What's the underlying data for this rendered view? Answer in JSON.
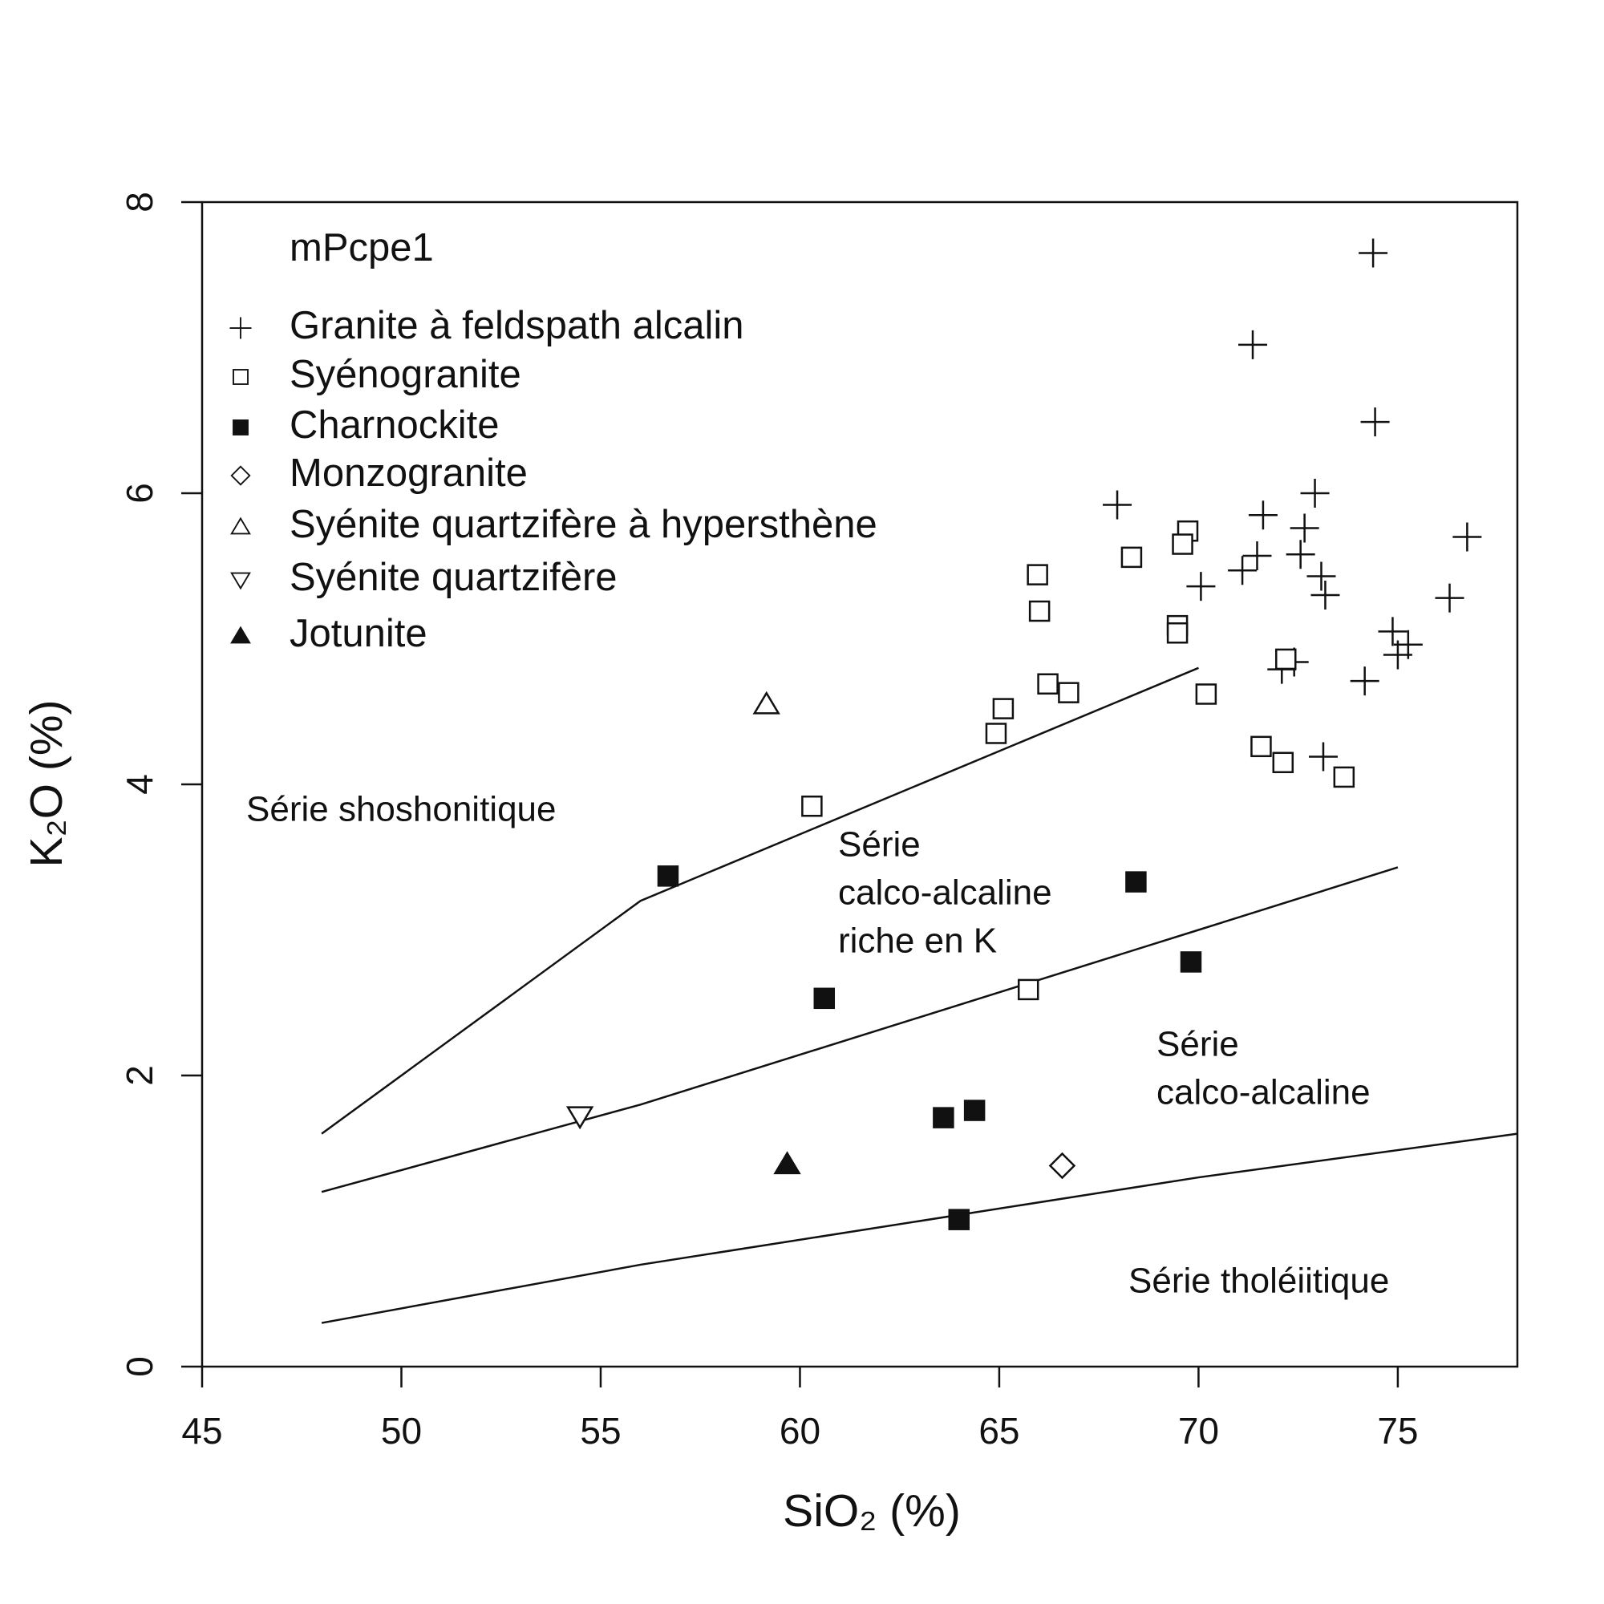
{
  "chart_data": {
    "type": "scatter",
    "legend_title": "mPcpe1",
    "x_label": "SiO₂ (%)",
    "y_label": "K₂O (%)",
    "xlim": [
      45,
      78
    ],
    "ylim": [
      0,
      8
    ],
    "xticks": [
      45,
      50,
      55,
      60,
      65,
      70,
      75
    ],
    "yticks": [
      0,
      2,
      4,
      6,
      8
    ],
    "legend_position": "top-left",
    "series": [
      {
        "name": "Granite à feldspath alcalin",
        "marker": "plus",
        "color": "#111111",
        "x": [
          74.38,
          71.36,
          74.43,
          72.92,
          67.96,
          71.62,
          72.66,
          76.74,
          71.47,
          72.56,
          71.1,
          73.08,
          70.06,
          73.18,
          76.3,
          74.87,
          75.26,
          75.0,
          72.09,
          72.4,
          74.17,
          73.13
        ],
        "values": [
          7.65,
          7.02,
          6.49,
          6.0,
          5.92,
          5.85,
          5.76,
          5.7,
          5.57,
          5.58,
          5.47,
          5.43,
          5.36,
          5.3,
          5.28,
          5.05,
          4.96,
          4.89,
          4.79,
          4.84,
          4.71,
          4.19
        ]
      },
      {
        "name": "Syénogranite",
        "marker": "open-square",
        "color": "#111111",
        "x": [
          69.73,
          69.6,
          68.32,
          65.96,
          66.01,
          69.47,
          69.47,
          72.19,
          66.22,
          66.74,
          70.19,
          65.1,
          64.92,
          71.57,
          72.12,
          73.65,
          60.3,
          65.73
        ],
        "values": [
          5.74,
          5.65,
          5.56,
          5.44,
          5.19,
          5.09,
          5.04,
          4.86,
          4.69,
          4.63,
          4.62,
          4.52,
          4.35,
          4.26,
          4.15,
          4.05,
          3.85,
          2.59
        ]
      },
      {
        "name": "Charnockite",
        "marker": "filled-square",
        "color": "#111111",
        "x": [
          56.69,
          68.43,
          69.81,
          60.61,
          63.6,
          64.38,
          63.99
        ],
        "values": [
          3.37,
          3.33,
          2.78,
          2.53,
          1.71,
          1.76,
          1.01
        ]
      },
      {
        "name": "Monzogranite",
        "marker": "open-diamond",
        "color": "#111111",
        "x": [
          66.58
        ],
        "values": [
          1.38
        ]
      },
      {
        "name": "Syénite quartzifère à hypersthène",
        "marker": "open-triangle-up",
        "color": "#111111",
        "x": [
          59.16
        ],
        "values": [
          4.55
        ]
      },
      {
        "name": "Syénite quartzifère",
        "marker": "open-triangle-down",
        "color": "#111111",
        "x": [
          54.48
        ],
        "values": [
          1.72
        ]
      },
      {
        "name": "Jotunite",
        "marker": "filled-triangle-up",
        "color": "#111111",
        "x": [
          59.68
        ],
        "values": [
          1.39
        ]
      }
    ],
    "boundaries": [
      {
        "x": [
          48,
          56,
          70
        ],
        "values": [
          1.6,
          3.2,
          4.8
        ]
      },
      {
        "x": [
          48,
          52,
          56,
          70,
          75
        ],
        "values": [
          1.2,
          1.5,
          1.8,
          3.0,
          3.43
        ]
      },
      {
        "x": [
          48,
          52,
          56,
          70,
          78
        ],
        "values": [
          0.3,
          0.5,
          0.7,
          1.3,
          1.6
        ]
      }
    ],
    "annotations": [
      {
        "lines": [
          "Série shoshonitique"
        ]
      },
      {
        "lines": [
          "Série",
          "calco-alcaline",
          "riche en K"
        ]
      },
      {
        "lines": [
          "Série",
          "calco-alcaline"
        ]
      },
      {
        "lines": [
          "Série tholéiitique"
        ]
      }
    ]
  }
}
